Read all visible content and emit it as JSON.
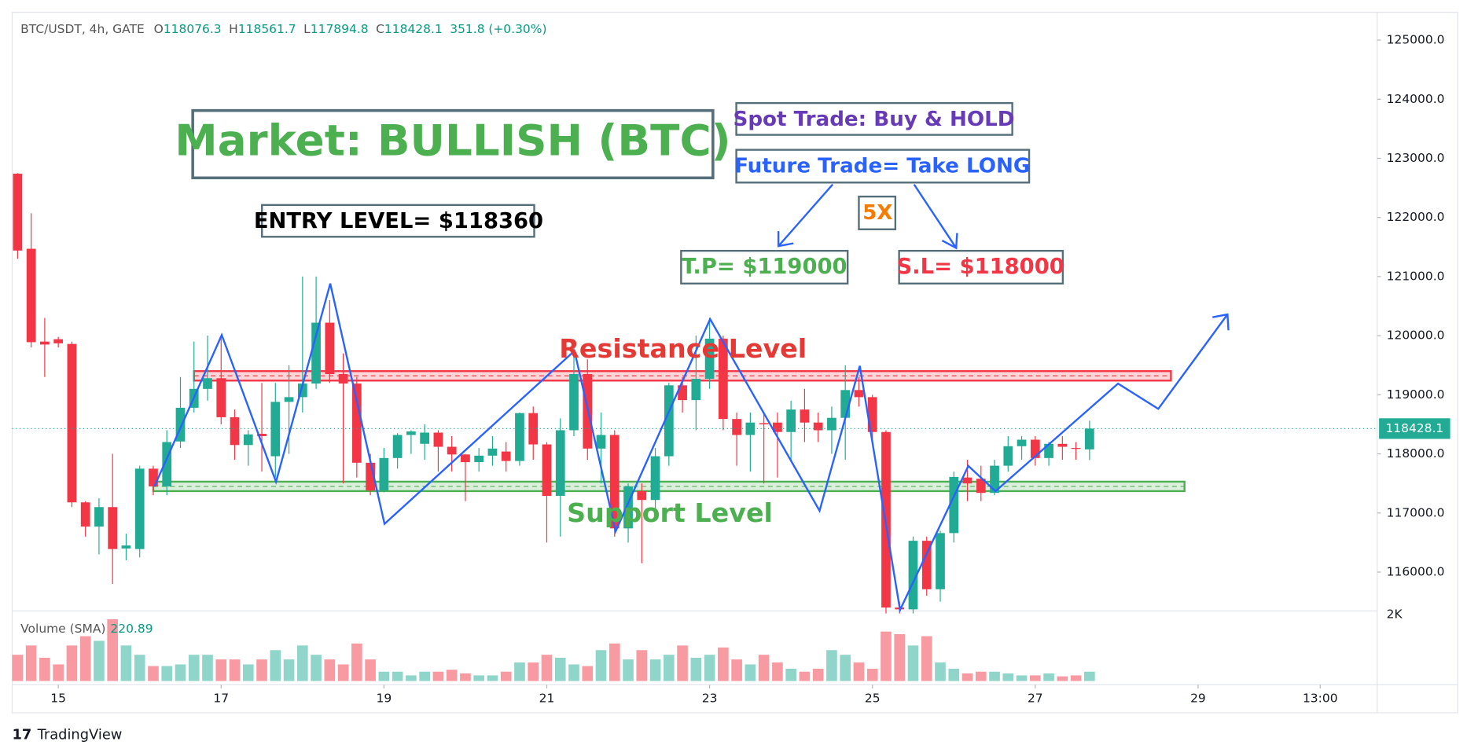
{
  "chart_data": {
    "type": "candlestick",
    "header": {
      "symbol": "BTC/USDT, 4h, GATE",
      "items": [
        {
          "label": "O",
          "value": 118076.3
        },
        {
          "label": "H",
          "value": 118561.7
        },
        {
          "label": "L",
          "value": 117894.8
        },
        {
          "label": "C",
          "value": 118428.1
        }
      ],
      "change": 351.8,
      "change_pct": "(+0.30%)"
    },
    "up_color": "#22ab94",
    "down_color": "#f23645",
    "candles": [
      [
        122740,
        122750,
        121300,
        121440
      ],
      [
        121470,
        122070,
        119800,
        119890
      ],
      [
        119900,
        120300,
        119300,
        119850
      ],
      [
        119940,
        119980,
        119800,
        119870
      ],
      [
        119860,
        119900,
        117100,
        117180
      ],
      [
        117180,
        117200,
        116600,
        116770
      ],
      [
        116770,
        117250,
        116300,
        117100
      ],
      [
        117100,
        118000,
        115800,
        116390
      ],
      [
        116400,
        116650,
        116200,
        116450
      ],
      [
        116390,
        117800,
        116250,
        117750
      ],
      [
        117750,
        117800,
        117300,
        117450
      ],
      [
        117450,
        118400,
        117300,
        118200
      ],
      [
        118210,
        119300,
        118100,
        118780
      ],
      [
        118780,
        119900,
        118700,
        119100
      ],
      [
        119100,
        120000,
        118900,
        119280
      ],
      [
        119280,
        120000,
        118500,
        118620
      ],
      [
        118620,
        118750,
        117900,
        118150
      ],
      [
        118150,
        118400,
        117800,
        118330
      ],
      [
        118340,
        119200,
        117700,
        118300
      ],
      [
        117960,
        119200,
        117600,
        118880
      ],
      [
        118880,
        119500,
        118000,
        118960
      ],
      [
        118960,
        121000,
        118700,
        119190
      ],
      [
        119190,
        121000,
        119100,
        120220
      ],
      [
        120220,
        120600,
        119200,
        119350
      ],
      [
        119350,
        119700,
        117500,
        119190
      ],
      [
        119190,
        119300,
        117600,
        117850
      ],
      [
        117850,
        118000,
        117300,
        117380
      ],
      [
        117380,
        118100,
        117350,
        117930
      ],
      [
        117930,
        118350,
        117750,
        118320
      ],
      [
        118320,
        118400,
        118000,
        118380
      ],
      [
        118170,
        118500,
        117900,
        118360
      ],
      [
        118360,
        118400,
        117700,
        118120
      ],
      [
        118120,
        118300,
        117700,
        117990
      ],
      [
        117990,
        118000,
        117200,
        117860
      ],
      [
        117860,
        118100,
        117700,
        117970
      ],
      [
        117970,
        118300,
        117800,
        118090
      ],
      [
        118040,
        118200,
        117700,
        117880
      ],
      [
        117880,
        118700,
        117800,
        118690
      ],
      [
        118690,
        118800,
        117900,
        118160
      ],
      [
        118160,
        118200,
        116500,
        117290
      ],
      [
        117290,
        118600,
        116600,
        118400
      ],
      [
        118400,
        119800,
        118300,
        119350
      ],
      [
        119350,
        119600,
        117900,
        118090
      ],
      [
        118090,
        118700,
        117500,
        118320
      ],
      [
        118320,
        118400,
        116600,
        116740
      ],
      [
        116740,
        117500,
        116500,
        117450
      ],
      [
        117370,
        117500,
        116150,
        117220
      ],
      [
        117220,
        118100,
        117000,
        117960
      ],
      [
        117960,
        119200,
        117800,
        119160
      ],
      [
        119160,
        119300,
        118700,
        118910
      ],
      [
        118910,
        120000,
        118400,
        119270
      ],
      [
        119270,
        120300,
        119100,
        119950
      ],
      [
        119950,
        120000,
        118400,
        118590
      ],
      [
        118590,
        118700,
        117800,
        118320
      ],
      [
        118320,
        118700,
        117700,
        118530
      ],
      [
        118520,
        118700,
        117500,
        118500
      ],
      [
        118530,
        118700,
        117600,
        118370
      ],
      [
        118370,
        118900,
        117900,
        118750
      ],
      [
        118750,
        119100,
        118200,
        118530
      ],
      [
        118530,
        118700,
        118200,
        118400
      ],
      [
        118400,
        118800,
        118000,
        118610
      ],
      [
        118610,
        119500,
        117900,
        119080
      ],
      [
        119080,
        119300,
        118800,
        118960
      ],
      [
        118960,
        119000,
        118200,
        118370
      ],
      [
        118370,
        118400,
        115300,
        115400
      ],
      [
        115400,
        115500,
        115300,
        115370
      ],
      [
        115370,
        116600,
        115300,
        116530
      ],
      [
        116530,
        116600,
        115600,
        115710
      ],
      [
        115710,
        116700,
        115500,
        116660
      ],
      [
        116660,
        117700,
        116500,
        117610
      ],
      [
        117600,
        117900,
        117200,
        117500
      ],
      [
        117580,
        117800,
        117200,
        117340
      ],
      [
        117340,
        117900,
        117300,
        117800
      ],
      [
        117800,
        118300,
        117700,
        118130
      ],
      [
        118130,
        118300,
        117900,
        118240
      ],
      [
        118240,
        118300,
        117800,
        117930
      ],
      [
        117930,
        118200,
        117800,
        118170
      ],
      [
        118170,
        118300,
        117900,
        118120
      ],
      [
        118100,
        118200,
        117900,
        118090
      ],
      [
        118076.3,
        118561.7,
        117894.8,
        118428.1
      ]
    ],
    "volume": [
      790,
      1070,
      700,
      500,
      1070,
      1350,
      1210,
      1860,
      1070,
      790,
      450,
      450,
      500,
      790,
      790,
      650,
      650,
      500,
      650,
      930,
      650,
      1070,
      790,
      650,
      500,
      1130,
      650,
      280,
      280,
      170,
      280,
      280,
      340,
      230,
      170,
      170,
      280,
      560,
      560,
      790,
      700,
      500,
      450,
      930,
      1130,
      650,
      930,
      650,
      790,
      1070,
      700,
      790,
      1010,
      650,
      500,
      790,
      560,
      370,
      280,
      370,
      930,
      790,
      560,
      370,
      1490,
      1410,
      1070,
      1350,
      560,
      370,
      230,
      280,
      280,
      230,
      170,
      170,
      230,
      140,
      170,
      280
    ],
    "volume_label": "Volume (SMA)",
    "volume_sma": 220.89,
    "volume_ylim": [
      0,
      2000
    ],
    "volume_ticks": [
      {
        "value": 2000,
        "label": "2K"
      }
    ],
    "xlim": [
      -0.4,
      100.2
    ],
    "xticks": [
      {
        "value": 3,
        "label": "15"
      },
      {
        "value": 15,
        "label": "17"
      },
      {
        "value": 27,
        "label": "19"
      },
      {
        "value": 39,
        "label": "21"
      },
      {
        "value": 51,
        "label": "23"
      },
      {
        "value": 63,
        "label": "25"
      },
      {
        "value": 75,
        "label": "27"
      },
      {
        "value": 87,
        "label": "29"
      },
      {
        "value": 96,
        "label": "13:00"
      }
    ],
    "ylim": [
      115360,
      125470
    ],
    "yticks": [
      {
        "value": 116000,
        "label": "116000.0"
      },
      {
        "value": 117000,
        "label": "117000.0"
      },
      {
        "value": 118000,
        "label": "118000.0"
      },
      {
        "value": 119000,
        "label": "119000.0"
      },
      {
        "value": 120000,
        "label": "120000.0"
      },
      {
        "value": 121000,
        "label": "121000.0"
      },
      {
        "value": 122000,
        "label": "122000.0"
      },
      {
        "value": 123000,
        "label": "123000.0"
      },
      {
        "value": 124000,
        "label": "124000.0"
      },
      {
        "value": 125000,
        "label": "125000.0"
      }
    ],
    "grid": false,
    "levels": [
      {
        "low": 119240,
        "high": 119400,
        "color": "#f23645"
      },
      {
        "low": 117370,
        "high": 117530,
        "color": "#4caf50"
      }
    ],
    "annotations": [
      {
        "text": "Market: BULLISH (BTC)",
        "color": "#4caf50"
      },
      {
        "text": "ENTRY LEVEL= $118360",
        "color": "#000000"
      },
      {
        "text": "Spot Trade: Buy & HOLD",
        "color": "#673ab7"
      },
      {
        "text": "Future Trade= Take LONG",
        "color": "#2962ff"
      },
      {
        "text": "5X",
        "color": "#f57c00"
      },
      {
        "text": "T.P= $119000",
        "color": "#4caf50"
      },
      {
        "text": "S.L= $118000",
        "color": "#f23645"
      },
      {
        "text": "Resistance Level",
        "color": "#e53935"
      },
      {
        "text": "Support Level",
        "color": "#4caf50"
      }
    ]
  },
  "branding": "TradingView"
}
